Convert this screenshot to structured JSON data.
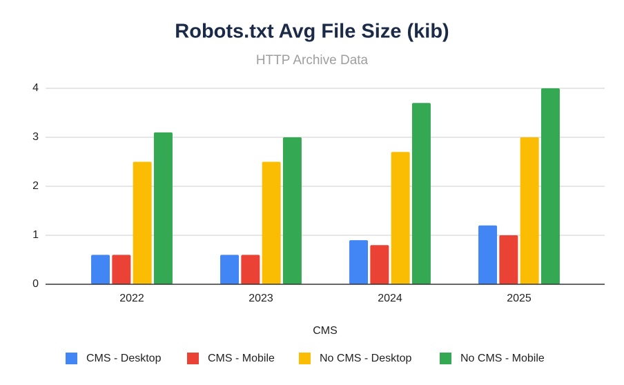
{
  "chart_data": {
    "type": "bar",
    "title": "Robots.txt Avg File Size (kib)",
    "subtitle": "HTTP Archive Data",
    "x_label": "CMS",
    "categories": [
      "2022",
      "2023",
      "2024",
      "2025"
    ],
    "series": [
      {
        "name": "CMS - Desktop",
        "color": "#4285f4",
        "values": [
          0.6,
          0.6,
          0.9,
          1.2
        ]
      },
      {
        "name": "CMS - Mobile",
        "color": "#ea4335",
        "values": [
          0.6,
          0.6,
          0.8,
          1.0
        ]
      },
      {
        "name": "No CMS - Desktop",
        "color": "#fbbc04",
        "values": [
          2.5,
          2.5,
          2.7,
          3.0
        ]
      },
      {
        "name": "No CMS - Mobile",
        "color": "#34a853",
        "values": [
          3.1,
          3.0,
          3.7,
          4.0
        ]
      }
    ],
    "ylim": [
      0,
      4
    ],
    "yticks": [
      0,
      1,
      2,
      3,
      4
    ],
    "grid": true,
    "legend": "bottom"
  }
}
